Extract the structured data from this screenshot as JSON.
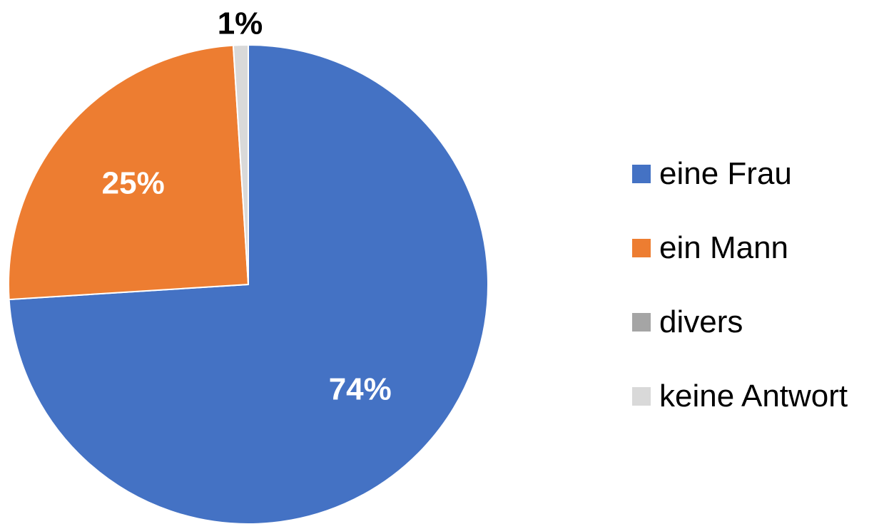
{
  "chart_data": {
    "type": "pie",
    "title": "",
    "legend_position": "right",
    "slices": [
      {
        "name": "eine Frau",
        "value": 74,
        "label": "74%",
        "color": "#4472C4",
        "label_color": "#FFFFFF"
      },
      {
        "name": "ein Mann",
        "value": 25,
        "label": "25%",
        "color": "#ED7D31",
        "label_color": "#FFFFFF"
      },
      {
        "name": "divers",
        "value": 0,
        "label": "",
        "color": "#A5A5A5",
        "label_color": "#000000"
      },
      {
        "name": "keine Antwort",
        "value": 1,
        "label": "1%",
        "color": "#D9D9D9",
        "label_color": "#000000"
      }
    ]
  }
}
